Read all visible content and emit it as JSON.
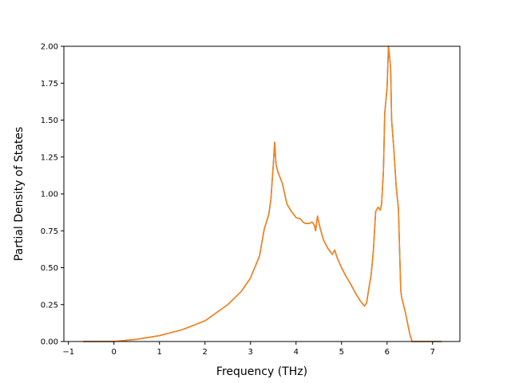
{
  "chart_data": {
    "type": "line",
    "xlabel": "Frequency (THz)",
    "ylabel": "Partial Density of States",
    "xlim": [
      -1.1,
      7.6
    ],
    "ylim": [
      0,
      2.0
    ],
    "grid": false,
    "x_ticks": [
      -1,
      0,
      1,
      2,
      3,
      4,
      5,
      6,
      7
    ],
    "y_ticks": [
      0.0,
      0.25,
      0.5,
      0.75,
      1.0,
      1.25,
      1.5,
      1.75,
      2.0
    ],
    "x_tick_labels": [
      "−1",
      "0",
      "1",
      "2",
      "3",
      "4",
      "5",
      "6",
      "7"
    ],
    "y_tick_labels": [
      "0.00",
      "0.25",
      "0.50",
      "0.75",
      "1.00",
      "1.25",
      "1.50",
      "1.75",
      "2.00"
    ],
    "series": [
      {
        "color": "#1f77b4",
        "x": [
          -0.68,
          0.0,
          0.5,
          1.0,
          1.5,
          2.0,
          2.5,
          2.8,
          3.0,
          3.2,
          3.3,
          3.4,
          3.45,
          3.5,
          3.53,
          3.56,
          3.6,
          3.7,
          3.8,
          3.9,
          4.0,
          4.1,
          4.15,
          4.2,
          4.3,
          4.35,
          4.4,
          4.43,
          4.47,
          4.52,
          4.6,
          4.7,
          4.8,
          4.85,
          4.9,
          5.0,
          5.1,
          5.2,
          5.3,
          5.4,
          5.5,
          5.55,
          5.6,
          5.65,
          5.7,
          5.75,
          5.8,
          5.85,
          5.88,
          5.92,
          5.95,
          6.0,
          6.03,
          6.05,
          6.08,
          6.1,
          6.15,
          6.2,
          6.25,
          6.3,
          6.32,
          6.4,
          6.5,
          6.55,
          6.6,
          7.2
        ],
        "y": [
          0.0,
          0.0,
          0.015,
          0.04,
          0.08,
          0.14,
          0.25,
          0.34,
          0.43,
          0.58,
          0.76,
          0.86,
          0.97,
          1.2,
          1.35,
          1.2,
          1.15,
          1.07,
          0.93,
          0.88,
          0.84,
          0.83,
          0.81,
          0.8,
          0.8,
          0.81,
          0.79,
          0.75,
          0.85,
          0.78,
          0.69,
          0.63,
          0.59,
          0.62,
          0.57,
          0.5,
          0.44,
          0.39,
          0.33,
          0.28,
          0.24,
          0.26,
          0.36,
          0.45,
          0.62,
          0.88,
          0.91,
          0.89,
          0.93,
          1.15,
          1.55,
          1.72,
          2.0,
          1.95,
          1.85,
          1.5,
          1.3,
          1.05,
          0.9,
          0.35,
          0.3,
          0.2,
          0.05,
          0.0,
          0.0,
          0.0
        ]
      },
      {
        "color": "#ff7f0e",
        "x": [
          -0.68,
          0.0,
          0.5,
          1.0,
          1.5,
          2.0,
          2.5,
          2.8,
          3.0,
          3.2,
          3.3,
          3.4,
          3.45,
          3.5,
          3.53,
          3.56,
          3.6,
          3.7,
          3.8,
          3.9,
          4.0,
          4.1,
          4.15,
          4.2,
          4.3,
          4.35,
          4.4,
          4.43,
          4.47,
          4.52,
          4.6,
          4.7,
          4.8,
          4.85,
          4.9,
          5.0,
          5.1,
          5.2,
          5.3,
          5.4,
          5.5,
          5.55,
          5.6,
          5.65,
          5.7,
          5.75,
          5.8,
          5.85,
          5.88,
          5.92,
          5.95,
          6.0,
          6.03,
          6.05,
          6.08,
          6.1,
          6.15,
          6.2,
          6.25,
          6.3,
          6.32,
          6.4,
          6.5,
          6.55,
          6.6,
          7.2
        ],
        "y": [
          0.0,
          0.0,
          0.015,
          0.04,
          0.08,
          0.14,
          0.25,
          0.34,
          0.43,
          0.58,
          0.76,
          0.86,
          0.97,
          1.2,
          1.35,
          1.2,
          1.15,
          1.07,
          0.93,
          0.88,
          0.84,
          0.83,
          0.81,
          0.8,
          0.8,
          0.81,
          0.79,
          0.75,
          0.85,
          0.78,
          0.69,
          0.63,
          0.59,
          0.62,
          0.57,
          0.5,
          0.44,
          0.39,
          0.33,
          0.28,
          0.24,
          0.26,
          0.36,
          0.45,
          0.62,
          0.88,
          0.91,
          0.89,
          0.93,
          1.15,
          1.55,
          1.72,
          2.0,
          1.95,
          1.85,
          1.5,
          1.3,
          1.05,
          0.9,
          0.35,
          0.3,
          0.2,
          0.05,
          0.0,
          0.0,
          0.0
        ]
      }
    ]
  }
}
